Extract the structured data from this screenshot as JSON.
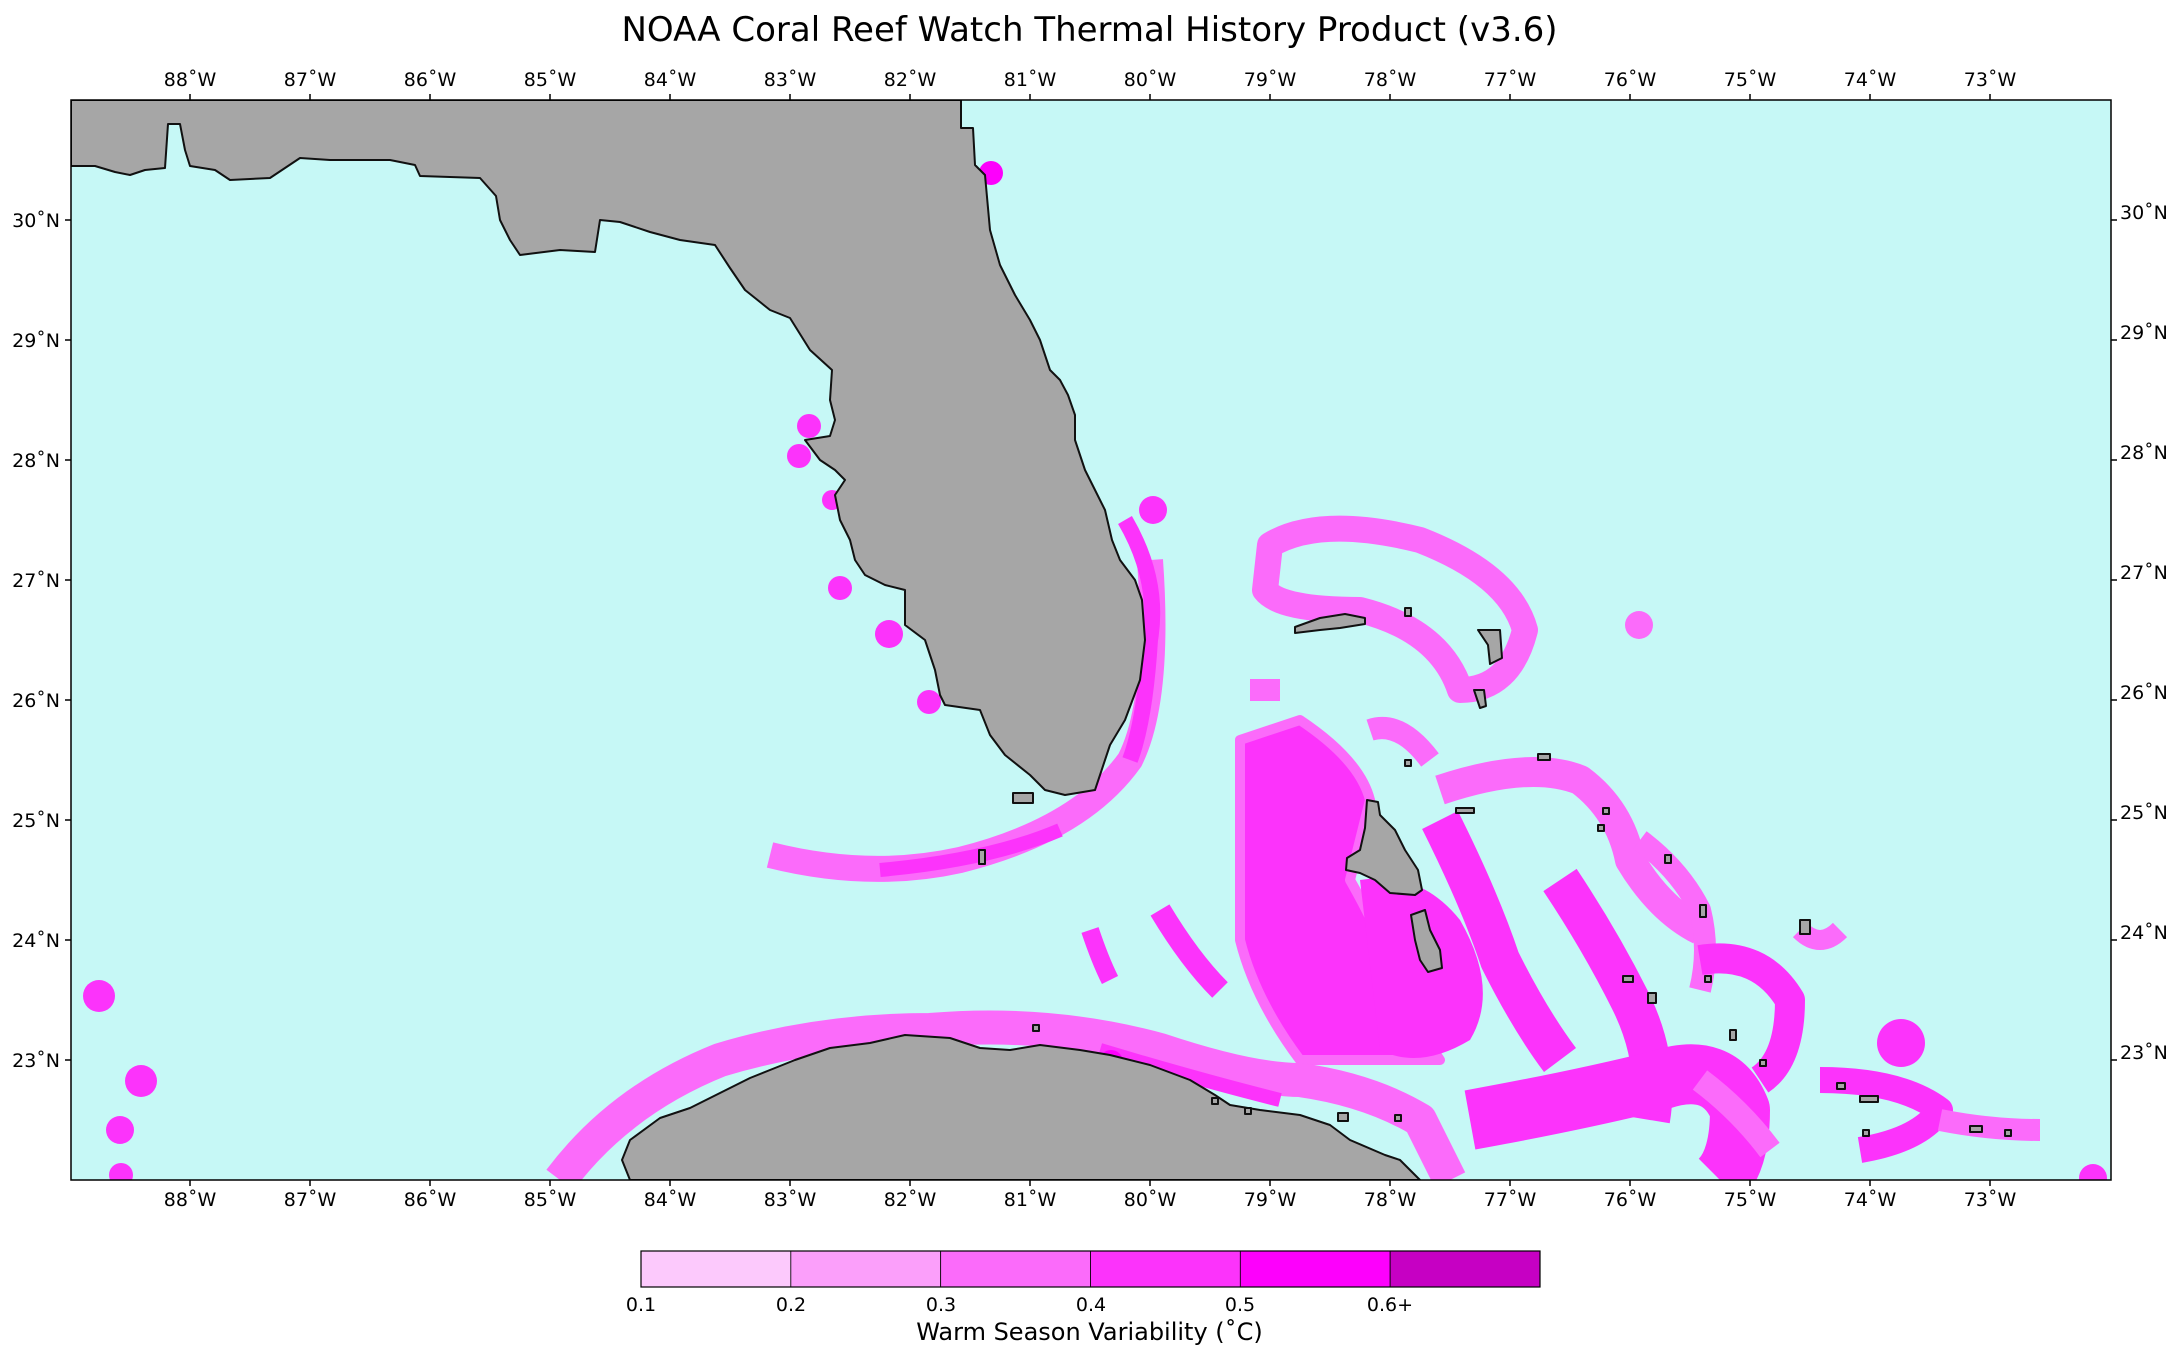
{
  "title": "NOAA Coral Reef Watch Thermal History Product (v3.6)",
  "longitudes": [
    "88˚W",
    "87˚W",
    "86˚W",
    "85˚W",
    "84˚W",
    "83˚W",
    "82˚W",
    "81˚W",
    "80˚W",
    "79˚W",
    "78˚W",
    "77˚W",
    "76˚W",
    "75˚W",
    "74˚W",
    "73˚W"
  ],
  "latitudes": [
    "30˚N",
    "29˚N",
    "28˚N",
    "27˚N",
    "26˚N",
    "25˚N",
    "24˚N",
    "23˚N"
  ],
  "colors": {
    "ocean": "#c6f8f6",
    "land": "#a6a6a6",
    "coast": "#111111",
    "levels": [
      "#fcc9fc",
      "#fb9ffa",
      "#fb6bfa",
      "#fc33fb",
      "#fd00fc",
      "#c600c3"
    ]
  },
  "colorbar": {
    "ticks": [
      "0.1",
      "0.2",
      "0.3",
      "0.4",
      "0.5",
      "0.6+"
    ],
    "label": "Warm Season Variability (˚C)"
  }
}
